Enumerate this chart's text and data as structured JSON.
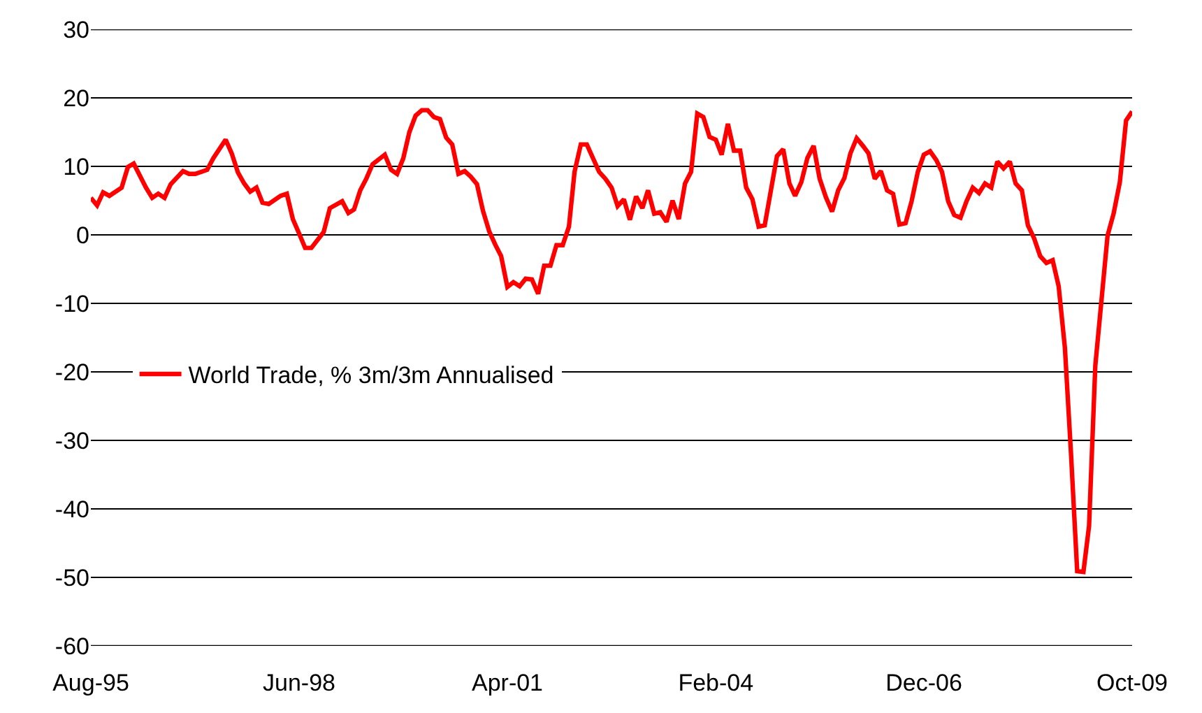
{
  "chart_data": {
    "type": "line",
    "x": [
      "1995-08",
      "1995-09",
      "1995-10",
      "1995-11",
      "1996-01",
      "1996-02",
      "1996-03",
      "1996-05",
      "1996-06",
      "1996-07",
      "1996-08",
      "1996-09",
      "1996-11",
      "1996-12",
      "1997-01",
      "1997-03",
      "1997-04",
      "1997-06",
      "1997-07",
      "1997-08",
      "1997-09",
      "1997-10",
      "1997-11",
      "1997-12",
      "1998-01",
      "1998-03",
      "1998-04",
      "1998-05",
      "1998-06",
      "1998-07",
      "1998-08",
      "1998-10",
      "1998-11",
      "1999-01",
      "1999-02",
      "1999-03",
      "1999-04",
      "1999-05",
      "1999-06",
      "1999-08",
      "1999-09",
      "1999-10",
      "1999-11",
      "1999-12",
      "2000-01",
      "2000-02",
      "2000-03",
      "2000-04",
      "2000-05",
      "2000-06",
      "2000-07",
      "2000-08",
      "2000-09",
      "2000-10",
      "2000-11",
      "2000-12",
      "2001-01",
      "2001-02",
      "2001-03",
      "2001-04",
      "2001-05",
      "2001-06",
      "2001-07",
      "2001-08",
      "2001-09",
      "2001-10",
      "2001-11",
      "2001-12",
      "2002-01",
      "2002-02",
      "2002-03",
      "2002-04",
      "2002-05",
      "2002-07",
      "2002-08",
      "2002-09",
      "2002-10",
      "2002-11",
      "2002-12",
      "2003-01",
      "2003-02",
      "2003-03",
      "2003-04",
      "2003-05",
      "2003-06",
      "2003-07",
      "2003-08",
      "2003-09",
      "2003-10",
      "2003-11",
      "2003-12",
      "2004-01",
      "2004-02",
      "2004-03",
      "2004-04",
      "2004-05",
      "2004-06",
      "2004-07",
      "2004-08",
      "2004-09",
      "2004-10",
      "2004-12",
      "2005-01",
      "2005-02",
      "2005-03",
      "2005-04",
      "2005-05",
      "2005-06",
      "2005-07",
      "2005-08",
      "2005-09",
      "2005-10",
      "2005-11",
      "2005-12",
      "2006-01",
      "2006-02",
      "2006-03",
      "2006-04",
      "2006-05",
      "2006-06",
      "2006-07",
      "2006-08",
      "2006-09",
      "2006-10",
      "2006-11",
      "2006-12",
      "2007-01",
      "2007-02",
      "2007-03",
      "2007-04",
      "2007-05",
      "2007-06",
      "2007-07",
      "2007-08",
      "2007-09",
      "2007-10",
      "2007-11",
      "2007-12",
      "2008-01",
      "2008-02",
      "2008-03",
      "2008-04",
      "2008-05",
      "2008-06",
      "2008-07",
      "2008-08",
      "2008-09",
      "2008-10",
      "2008-11",
      "2008-12",
      "2009-01",
      "2009-02",
      "2009-03",
      "2009-04",
      "2009-05",
      "2009-06",
      "2009-07",
      "2009-08",
      "2009-09",
      "2009-10"
    ],
    "series": [
      {
        "name": "World Trade, % 3m/3m Annualised",
        "color": "#ff0000",
        "values": [
          5.4,
          4.3,
          6.2,
          5.7,
          6.9,
          9.9,
          10.4,
          6.9,
          5.4,
          6.0,
          5.4,
          7.4,
          9.3,
          8.9,
          8.9,
          9.5,
          11.2,
          13.9,
          11.9,
          9.1,
          7.5,
          6.3,
          6.9,
          4.7,
          4.5,
          5.7,
          6.0,
          2.3,
          0.2,
          -1.9,
          -1.9,
          0.4,
          3.9,
          4.9,
          3.2,
          3.7,
          6.5,
          8.2,
          10.3,
          11.7,
          9.5,
          8.9,
          11.2,
          15.0,
          17.4,
          18.2,
          18.2,
          17.2,
          16.9,
          14.2,
          13.2,
          8.9,
          9.3,
          8.5,
          7.4,
          3.5,
          0.5,
          -1.5,
          -3.1,
          -7.6,
          -6.9,
          -7.5,
          -6.4,
          -6.5,
          -8.6,
          -4.5,
          -4.5,
          -1.5,
          -1.5,
          1.2,
          9.2,
          13.2,
          13.2,
          9.2,
          8.2,
          6.9,
          4.2,
          5.2,
          2.2,
          5.6,
          3.9,
          6.5,
          3.1,
          3.3,
          1.9,
          5.0,
          2.3,
          7.5,
          9.2,
          17.7,
          17.2,
          14.3,
          13.9,
          11.7,
          16.2,
          12.3,
          12.3,
          6.9,
          5.2,
          1.2,
          1.4,
          11.5,
          12.5,
          7.5,
          5.7,
          7.7,
          11.2,
          13.0,
          8.2,
          5.5,
          3.4,
          6.5,
          8.3,
          11.9,
          14.1,
          13.0,
          11.9,
          8.2,
          9.3,
          6.5,
          6.0,
          1.5,
          1.7,
          4.9,
          9.2,
          11.7,
          12.2,
          10.9,
          9.2,
          4.9,
          2.9,
          2.5,
          4.9,
          6.9,
          6.1,
          7.5,
          6.9,
          10.7,
          9.7,
          10.7,
          7.5,
          6.5,
          1.4,
          -0.5,
          -3.1,
          -4.1,
          -3.7,
          -7.5,
          -16.5,
          -31.8,
          -49.1,
          -49.2,
          -42.5,
          -19.1,
          -9.8,
          -0.1,
          3.1,
          7.7,
          16.7,
          18.0
        ]
      }
    ],
    "xlim": [
      "1995-08",
      "2009-10"
    ],
    "xticks": [
      {
        "value": "1995-08",
        "label": "Aug-95"
      },
      {
        "value": "1998-06",
        "label": "Jun-98"
      },
      {
        "value": "2001-04",
        "label": "Apr-01"
      },
      {
        "value": "2004-02",
        "label": "Feb-04"
      },
      {
        "value": "2006-12",
        "label": "Dec-06"
      },
      {
        "value": "2009-10",
        "label": "Oct-09"
      }
    ],
    "ylim": [
      -60,
      30
    ],
    "yticks": [
      -60,
      -50,
      -40,
      -30,
      -20,
      -10,
      0,
      10,
      20,
      30
    ],
    "grid": "y",
    "legend": "left",
    "marker": "none",
    "line_style": "solid"
  }
}
